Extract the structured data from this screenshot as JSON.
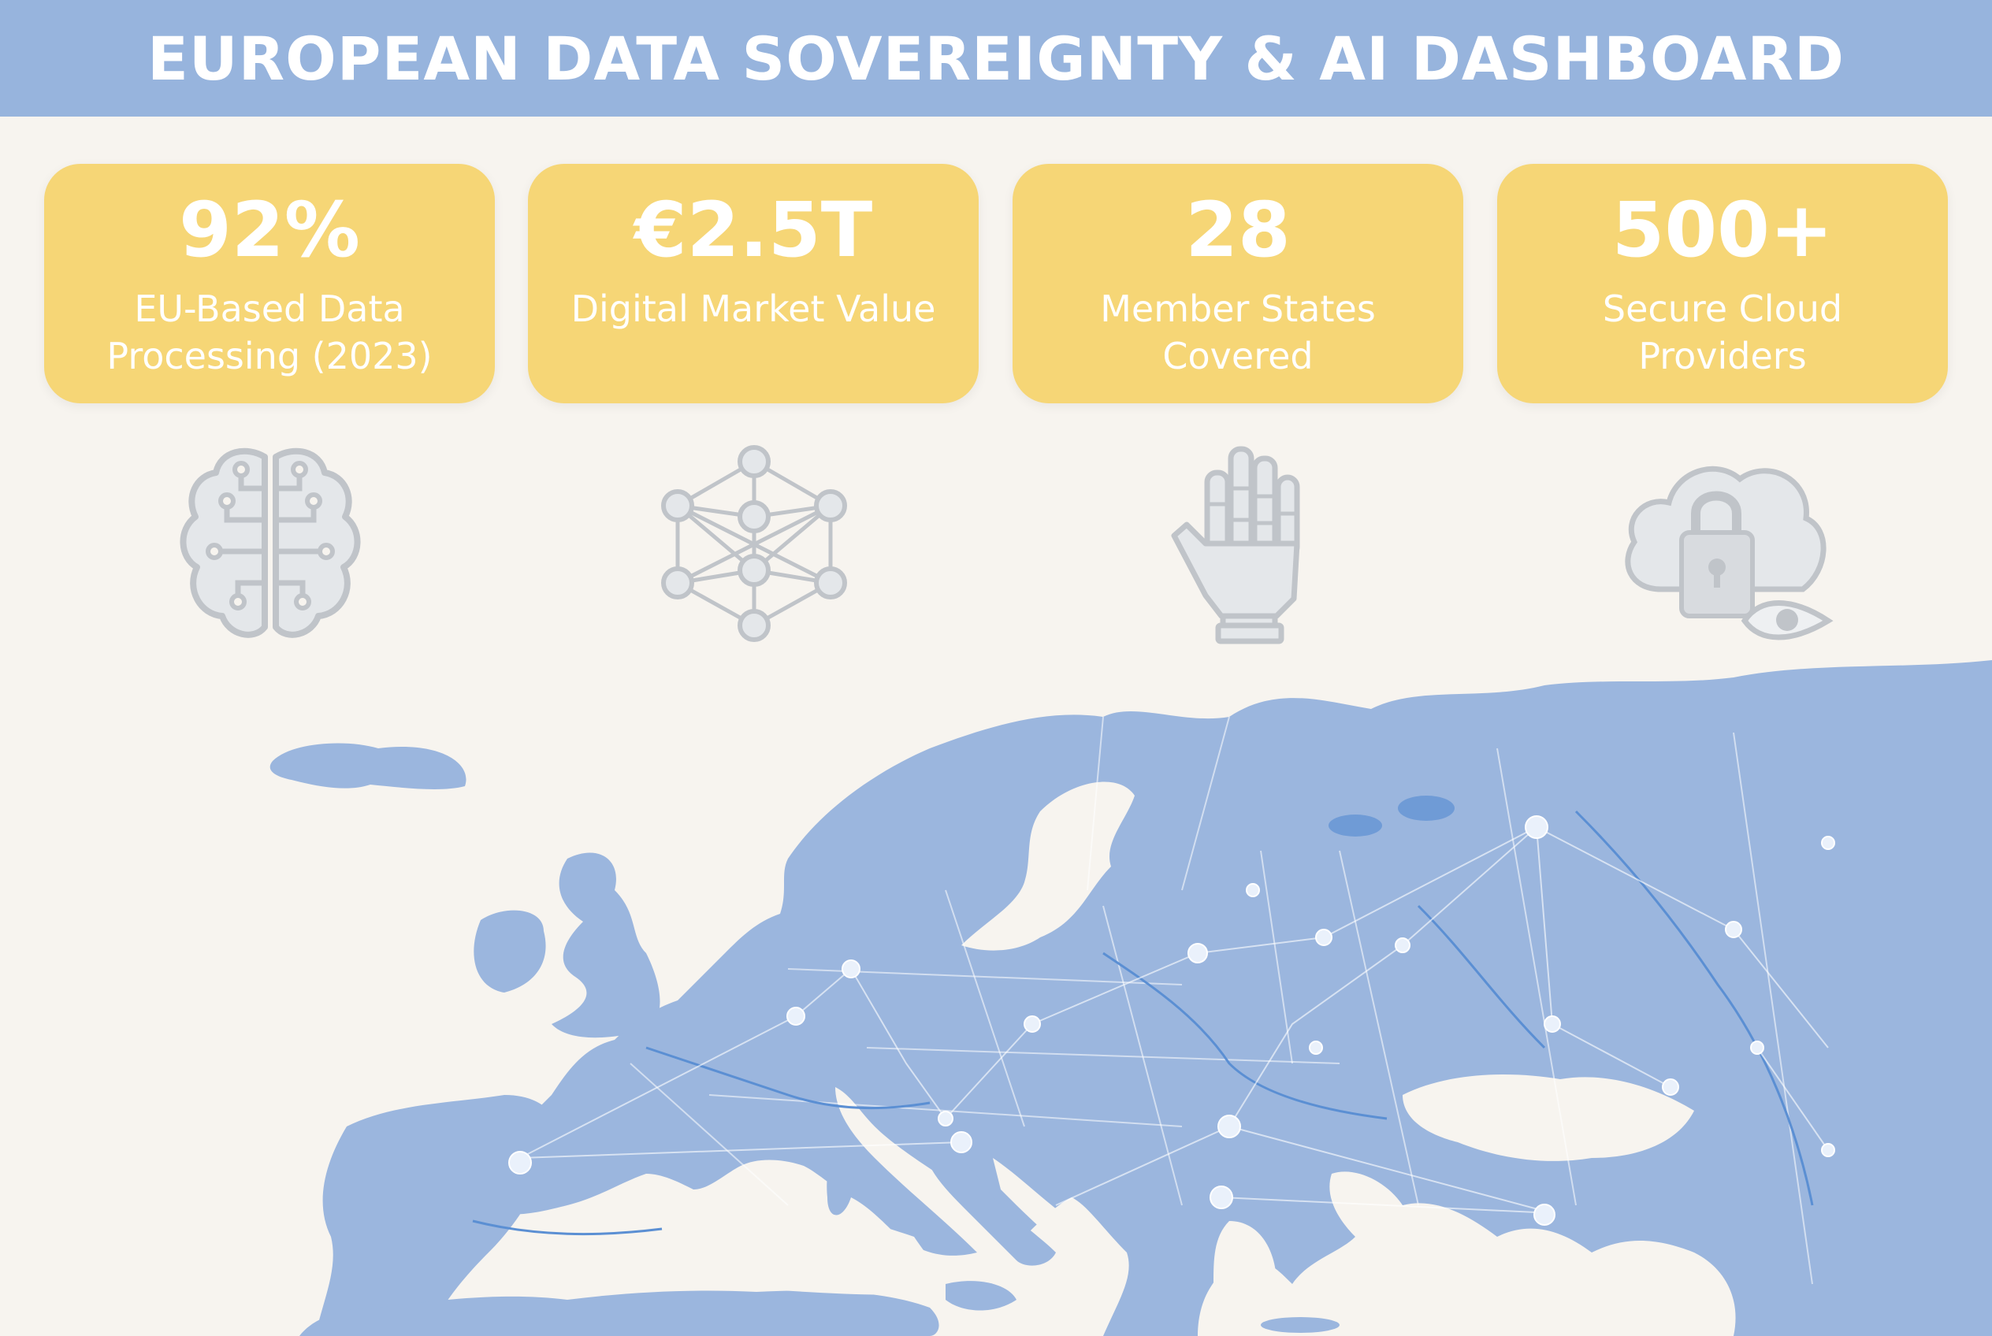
{
  "header": {
    "title": "EUROPEAN DATA SOVEREIGNTY & AI DASHBOARD"
  },
  "stats": [
    {
      "value": "92%",
      "label_line1": "EU-Based Data",
      "label_line2": "Processing (2023)"
    },
    {
      "value": "€2.5T",
      "label_line1": "Digital Market Value",
      "label_line2": ""
    },
    {
      "value": "28",
      "label_line1": "Member States",
      "label_line2": "Covered"
    },
    {
      "value": "500+",
      "label_line1": "Secure Cloud",
      "label_line2": "Providers"
    }
  ],
  "icons": [
    "brain-circuit-icon",
    "neural-network-icon",
    "robot-hand-icon",
    "cloud-lock-eye-icon"
  ],
  "colors": {
    "header_bg": "#97b4dd",
    "card_bg": "#f6d676",
    "map_land": "#9bb6de",
    "background": "#f7f4ef",
    "icon_gray": "#c7cbd0"
  }
}
